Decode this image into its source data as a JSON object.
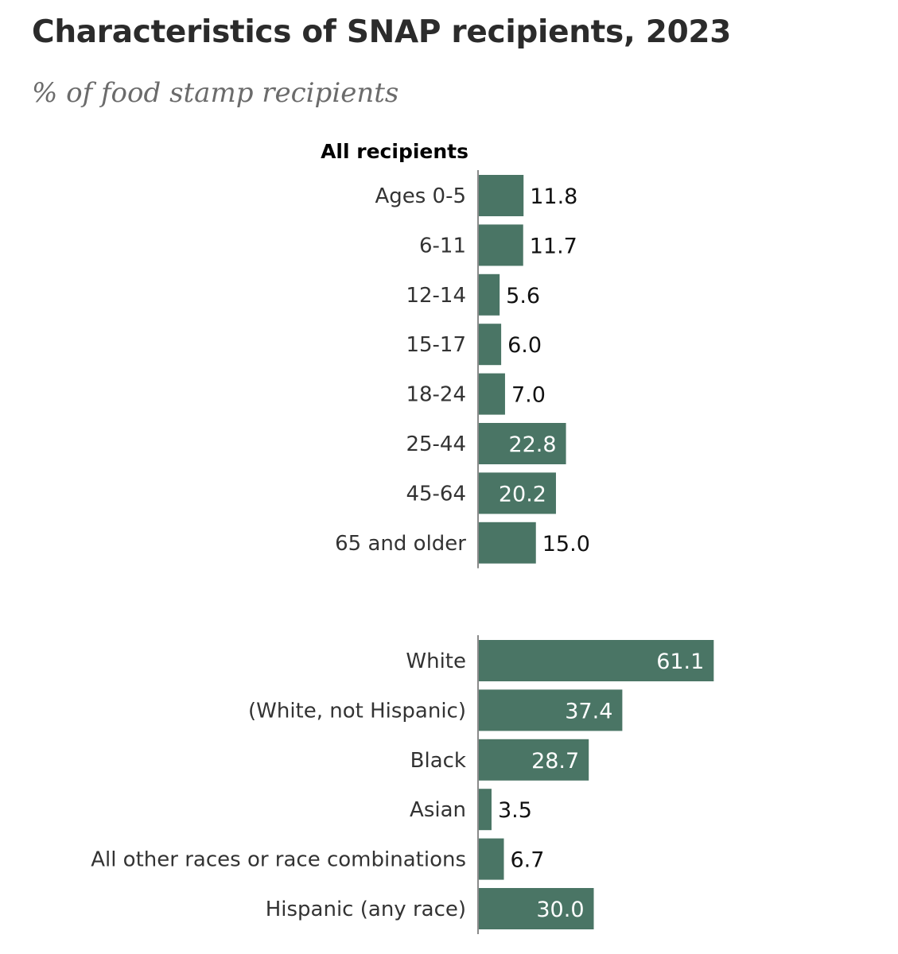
{
  "chart_data": {
    "type": "bar",
    "orientation": "horizontal",
    "title": "Characteristics of SNAP recipients, 2023",
    "subtitle": "% of food stamp recipients",
    "bar_color": "#4a7565",
    "groups": [
      {
        "label": "All recipients",
        "categories": [
          "Ages 0-5",
          "6-11",
          "12-14",
          "15-17",
          "18-24",
          "25-44",
          "45-64",
          "65 and older"
        ],
        "values": [
          11.8,
          11.7,
          5.6,
          6.0,
          7.0,
          22.8,
          20.2,
          15.0
        ],
        "value_labels": [
          "11.8",
          "11.7",
          "5.6",
          "6.0",
          "7.0",
          "22.8",
          "20.2",
          "15.0"
        ]
      },
      {
        "label": "",
        "categories": [
          "White",
          "(White, not Hispanic)",
          "Black",
          "Asian",
          "All other races or race combinations",
          "Hispanic (any race)"
        ],
        "values": [
          61.1,
          37.4,
          28.7,
          3.5,
          6.7,
          30.0
        ],
        "value_labels": [
          "61.1",
          "37.4",
          "28.7",
          "3.5",
          "6.7",
          "30.0"
        ]
      }
    ]
  }
}
